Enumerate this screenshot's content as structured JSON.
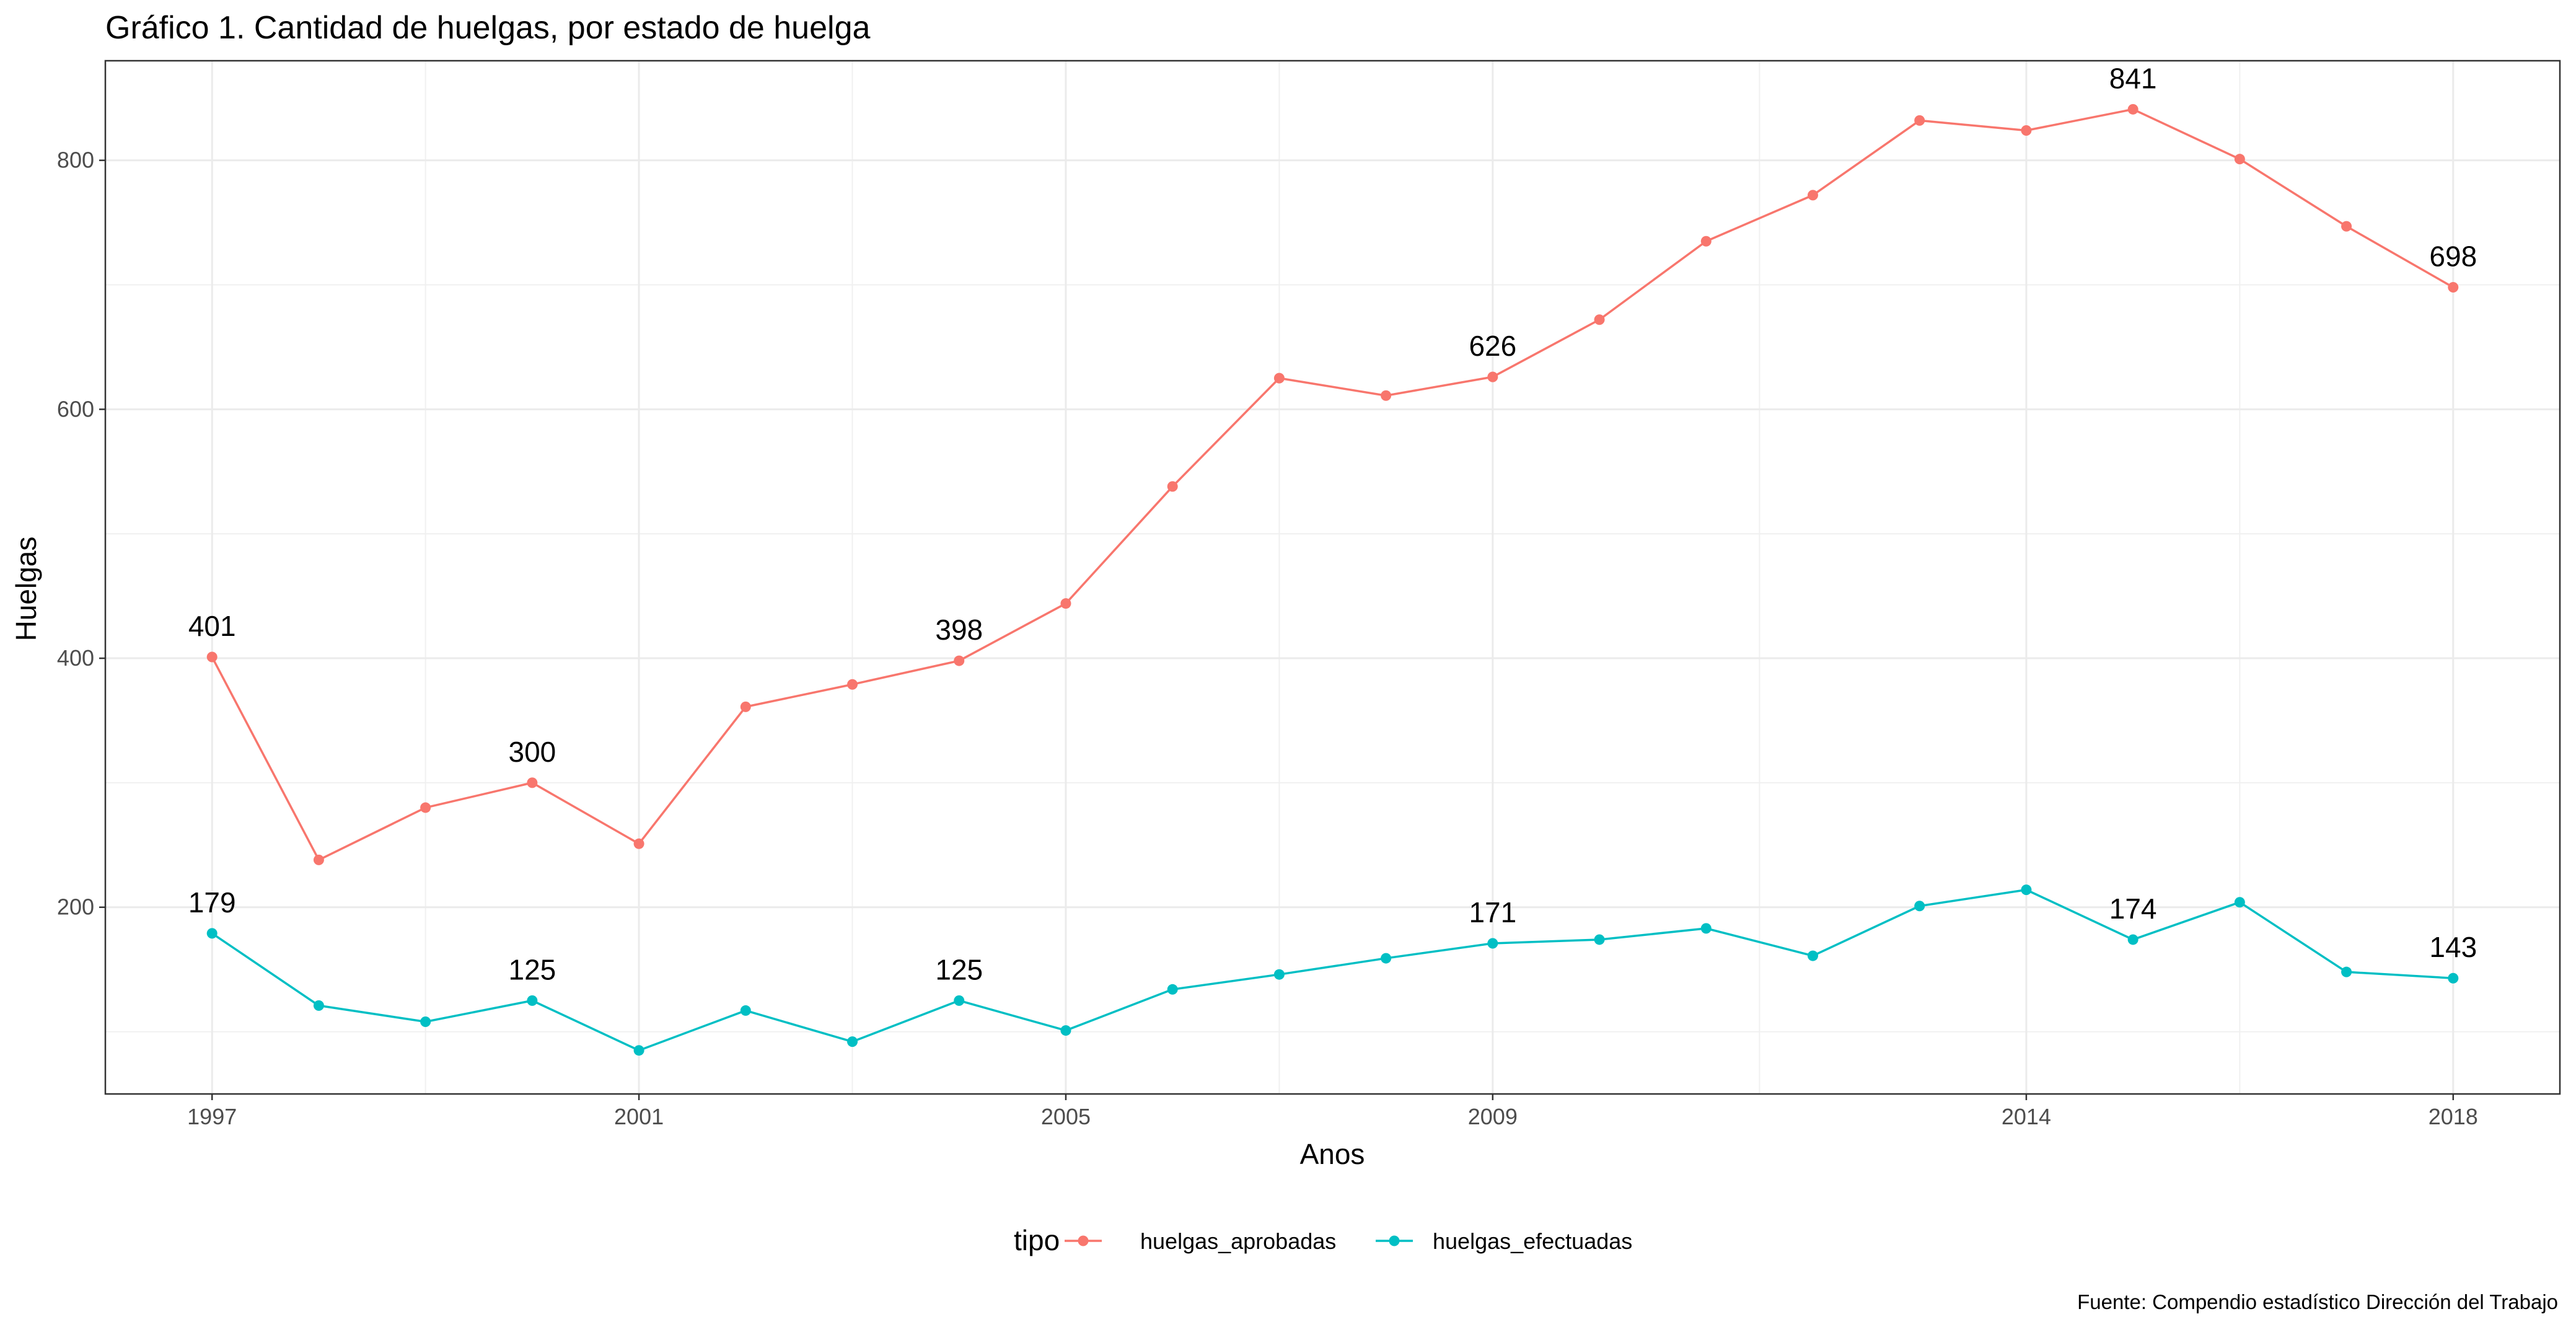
{
  "chart_data": {
    "type": "line",
    "title": "Gráfico 1. Cantidad de huelgas, por estado de huelga",
    "xlabel": "Anos",
    "ylabel": "Huelgas",
    "caption": "Fuente: Compendio estadístico Dirección del Trabajo",
    "legend": {
      "title": "tipo",
      "placement": "bottom"
    },
    "grid": true,
    "x": [
      1997,
      1998,
      1999,
      2000,
      2001,
      2002,
      2003,
      2004,
      2005,
      2006,
      2007,
      2008,
      2009,
      2010,
      2011,
      2012,
      2013,
      2014,
      2015,
      2016,
      2017,
      2018
    ],
    "x_ticks": [
      1997,
      2001,
      2005,
      2009,
      2014,
      2018
    ],
    "y_ticks": [
      200,
      400,
      600,
      800
    ],
    "xlim": [
      1996,
      2019
    ],
    "ylim": [
      50,
      880
    ],
    "series": [
      {
        "name": "huelgas_aprobadas",
        "color": "#F8766D",
        "values": [
          401,
          238,
          280,
          300,
          251,
          361,
          379,
          398,
          444,
          538,
          625,
          611,
          626,
          672,
          735,
          772,
          832,
          824,
          841,
          801,
          747,
          698
        ],
        "labeled_points": [
          {
            "x": 1997,
            "label": "401"
          },
          {
            "x": 2000,
            "label": "300"
          },
          {
            "x": 2004,
            "label": "398"
          },
          {
            "x": 2009,
            "label": "626"
          },
          {
            "x": 2015,
            "label": "841"
          },
          {
            "x": 2018,
            "label": "698"
          }
        ]
      },
      {
        "name": "huelgas_efectuadas",
        "color": "#00BFC4",
        "values": [
          179,
          121,
          108,
          125,
          85,
          117,
          92,
          125,
          101,
          134,
          146,
          159,
          171,
          174,
          183,
          161,
          201,
          214,
          174,
          204,
          148,
          143
        ],
        "labeled_points": [
          {
            "x": 1997,
            "label": "179"
          },
          {
            "x": 2000,
            "label": "125"
          },
          {
            "x": 2004,
            "label": "125"
          },
          {
            "x": 2009,
            "label": "171"
          },
          {
            "x": 2015,
            "label": "174"
          },
          {
            "x": 2018,
            "label": "143"
          }
        ]
      }
    ]
  }
}
